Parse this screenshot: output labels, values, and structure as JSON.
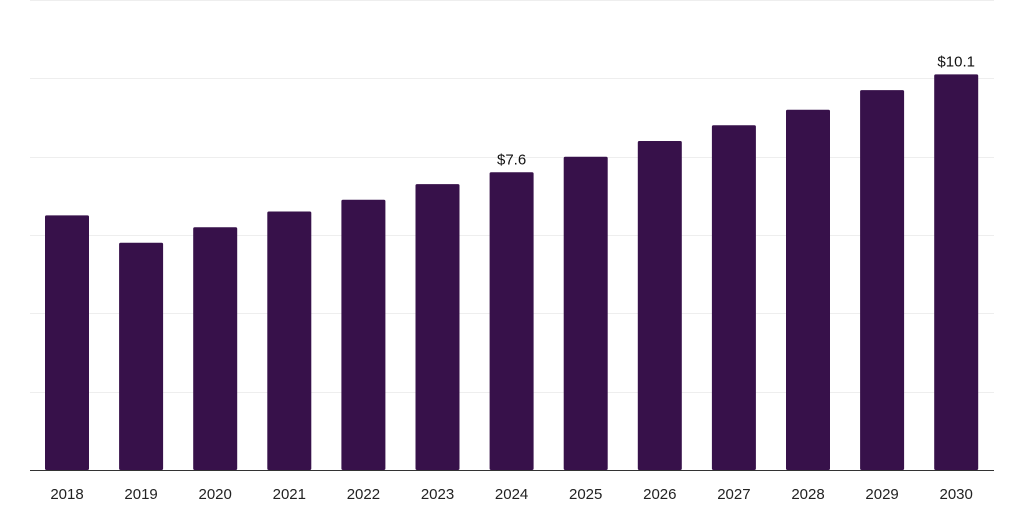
{
  "chart_data": {
    "type": "bar",
    "categories": [
      "2018",
      "2019",
      "2020",
      "2021",
      "2022",
      "2023",
      "2024",
      "2025",
      "2026",
      "2027",
      "2028",
      "2029",
      "2030"
    ],
    "values": [
      6.5,
      5.8,
      6.2,
      6.6,
      6.9,
      7.3,
      7.6,
      8.0,
      8.4,
      8.8,
      9.2,
      9.7,
      10.1
    ],
    "data_labels": [
      {
        "index": 6,
        "text": "$7.6"
      },
      {
        "index": 12,
        "text": "$10.1"
      }
    ],
    "ylim": [
      0,
      12
    ],
    "y_gridlines": [
      2,
      4,
      6,
      8,
      10,
      12
    ],
    "grid": true,
    "colors": {
      "bar": "#37114a"
    }
  }
}
